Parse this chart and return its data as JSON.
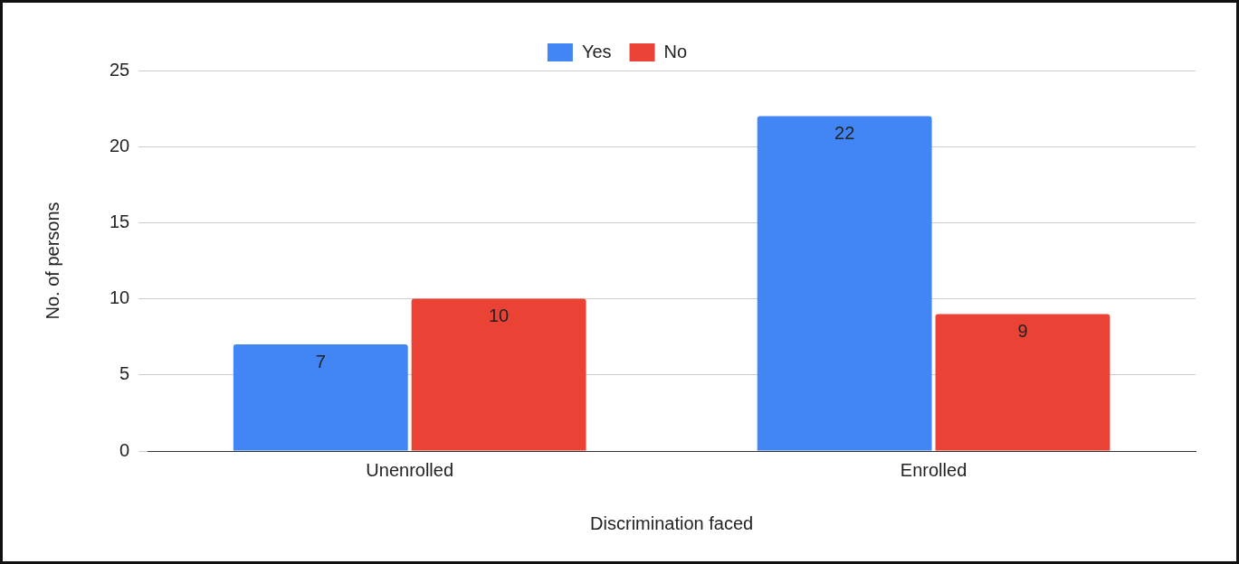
{
  "chart_data": {
    "type": "bar",
    "xlabel": "Discrimination faced",
    "ylabel": "No. of persons",
    "categories": [
      "Unenrolled",
      "Enrolled"
    ],
    "series": [
      {
        "name": "Yes",
        "color": "#4285f4",
        "values": [
          7,
          22
        ]
      },
      {
        "name": "No",
        "color": "#ea4335",
        "values": [
          10,
          9
        ]
      }
    ],
    "ylim": [
      0,
      25
    ],
    "yticks": [
      0,
      5,
      10,
      15,
      20,
      25
    ],
    "grid": "y",
    "legend": "top",
    "data_labels": true
  }
}
